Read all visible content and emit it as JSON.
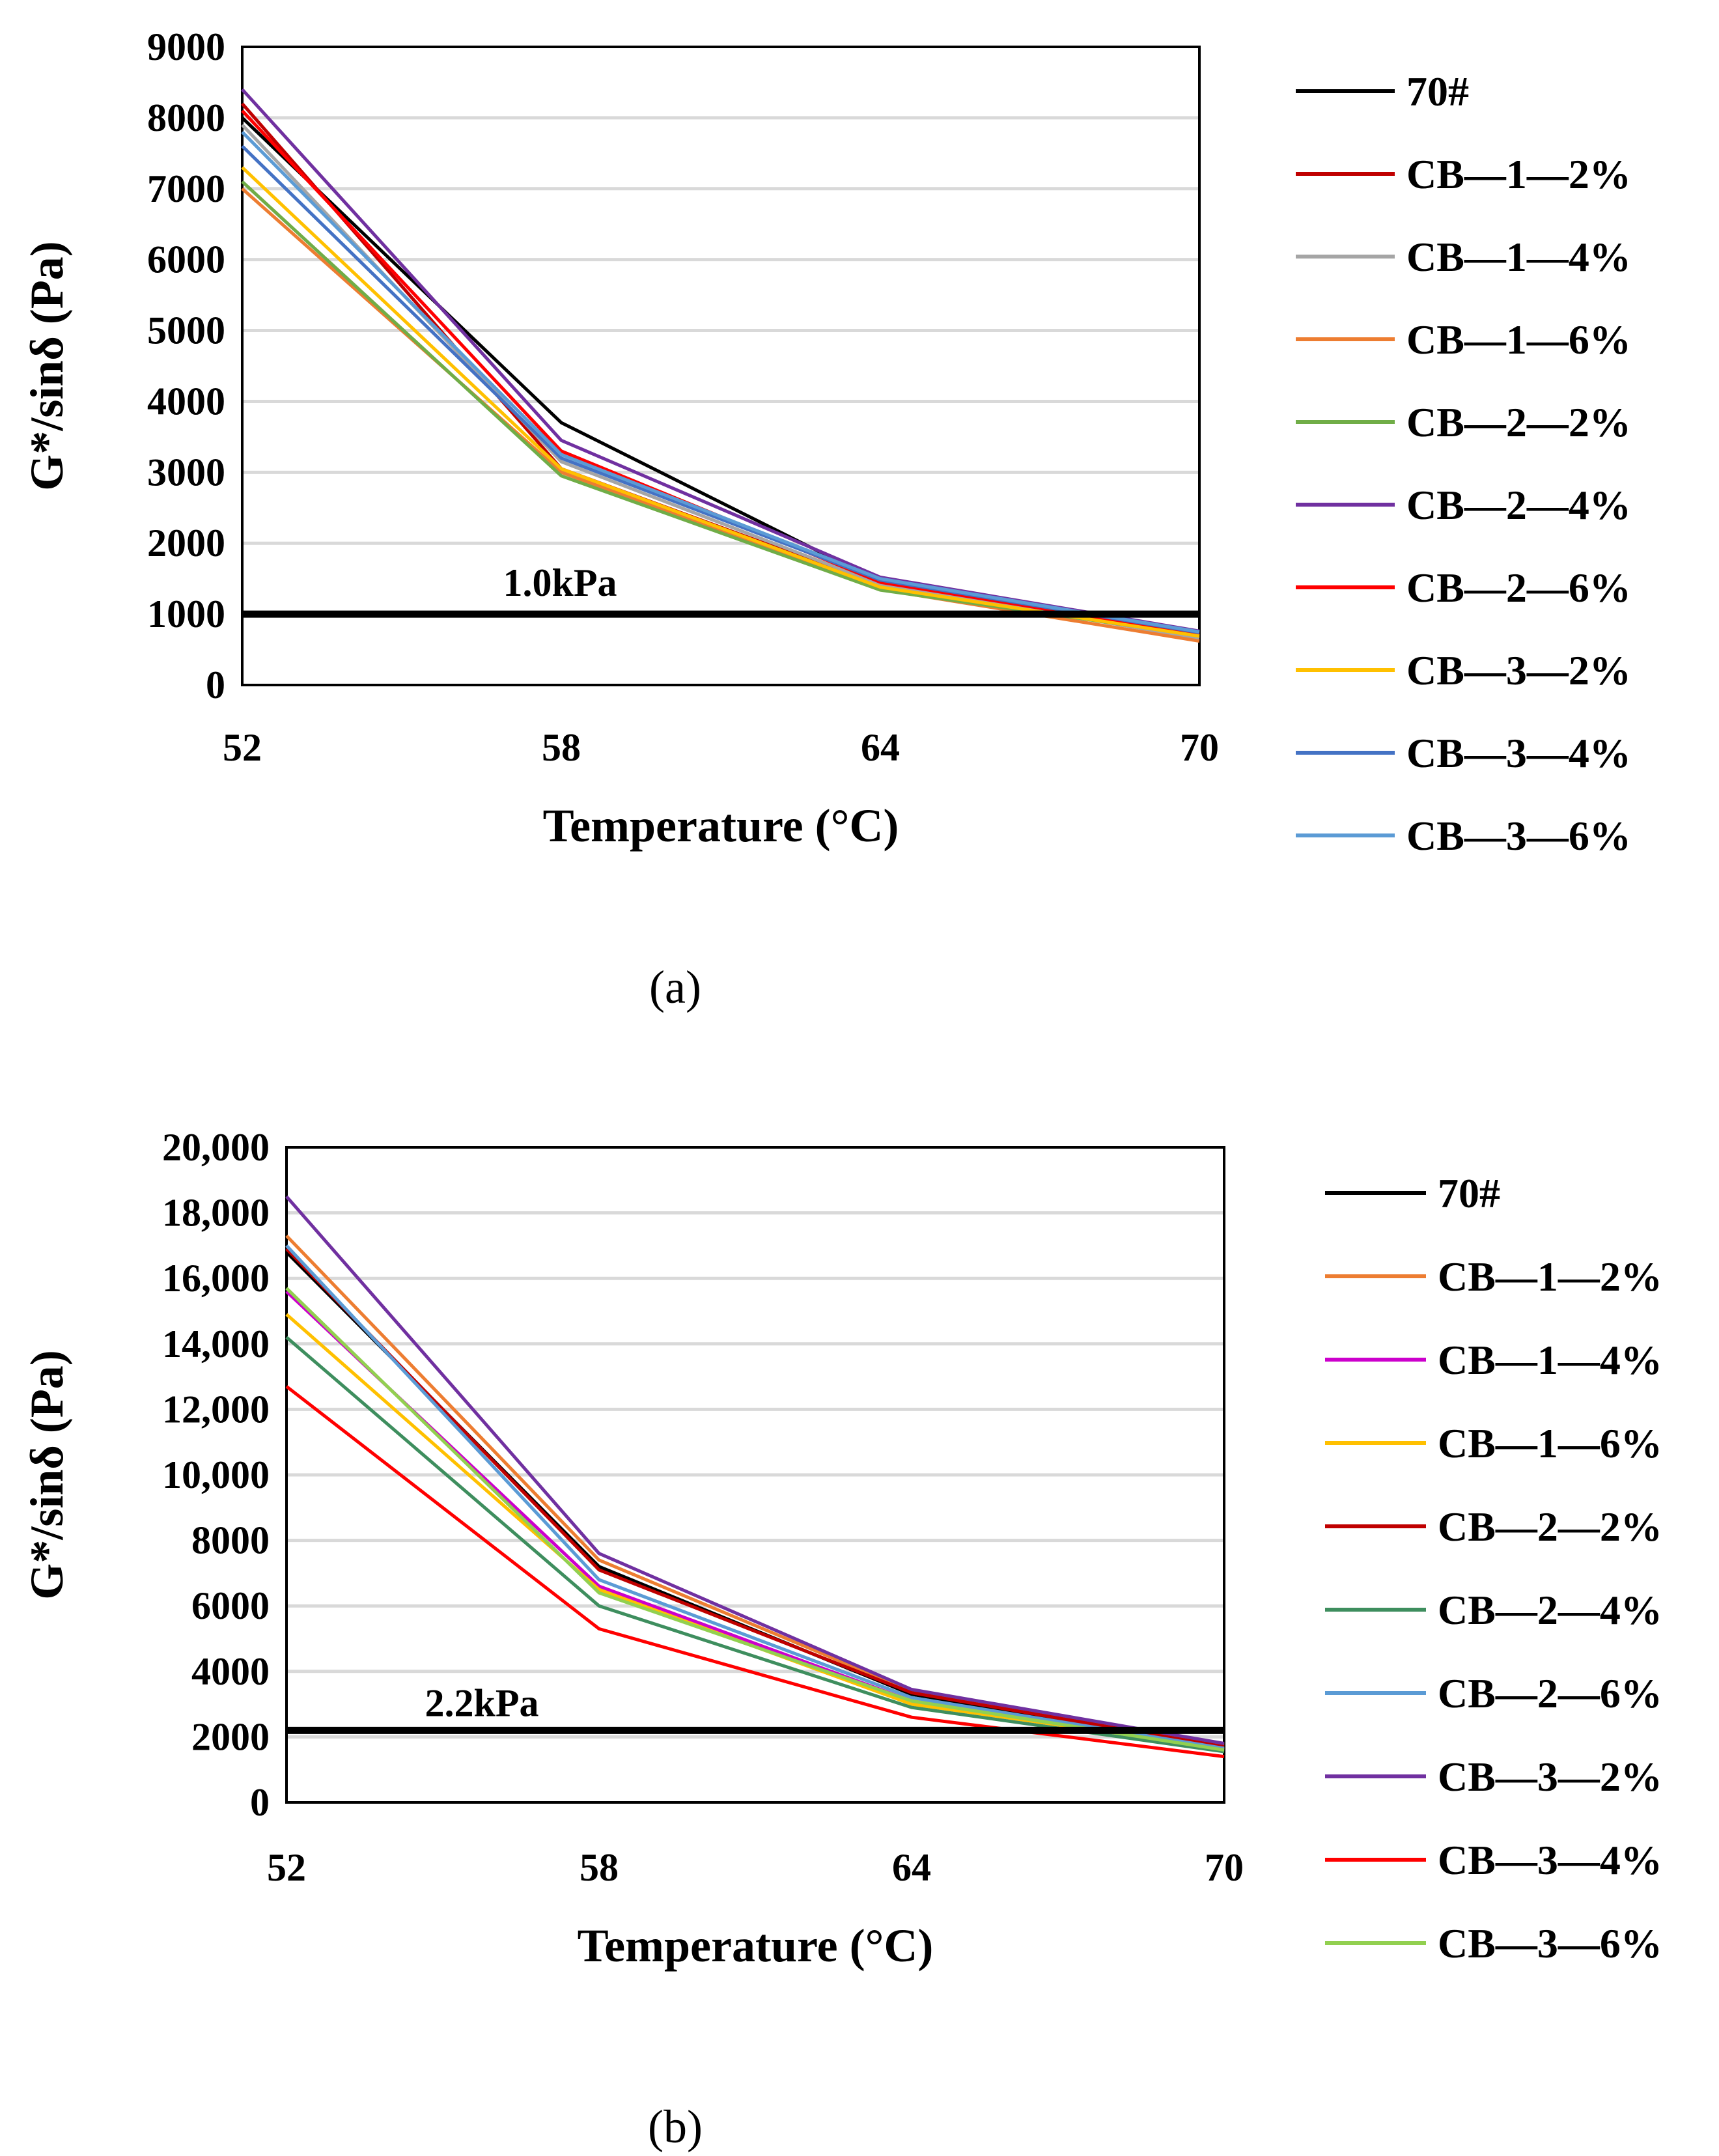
{
  "chart_data": [
    {
      "type": "line",
      "caption": "(a)",
      "xlabel": "Temperature (°C)",
      "ylabel": "G*/sinδ (Pa)",
      "categories": [
        "52",
        "58",
        "64",
        "70"
      ],
      "ylim": [
        0,
        9000
      ],
      "yticks": [
        "0",
        "1000",
        "2000",
        "3000",
        "4000",
        "5000",
        "6000",
        "7000",
        "8000",
        "9000"
      ],
      "reference": {
        "value": 1000,
        "label": "1.0kPa"
      },
      "legend_position": "right",
      "series": [
        {
          "name": "70#",
          "color": "#000000",
          "values": [
            8000,
            3700,
            1450,
            700
          ]
        },
        {
          "name": "CB—1—2%",
          "color": "#C00000",
          "values": [
            8200,
            3050,
            1400,
            680
          ]
        },
        {
          "name": "CB—1—4%",
          "color": "#A5A5A5",
          "values": [
            7900,
            3150,
            1420,
            660
          ]
        },
        {
          "name": "CB—1—6%",
          "color": "#ED7D31",
          "values": [
            7000,
            3000,
            1350,
            620
          ]
        },
        {
          "name": "CB—2—2%",
          "color": "#70AD47",
          "values": [
            7100,
            2950,
            1340,
            700
          ]
        },
        {
          "name": "CB—2—4%",
          "color": "#7030A0",
          "values": [
            8400,
            3450,
            1520,
            760
          ]
        },
        {
          "name": "CB—2—6%",
          "color": "#FF0000",
          "values": [
            8100,
            3300,
            1450,
            720
          ]
        },
        {
          "name": "CB—3—2%",
          "color": "#FFC000",
          "values": [
            7300,
            3050,
            1380,
            690
          ]
        },
        {
          "name": "CB—3—4%",
          "color": "#4472C4",
          "values": [
            7600,
            3200,
            1480,
            740
          ]
        },
        {
          "name": "CB—3—6%",
          "color": "#5B9BD5",
          "values": [
            7800,
            3250,
            1500,
            750
          ]
        }
      ]
    },
    {
      "type": "line",
      "caption": "(b)",
      "xlabel": "Temperature (°C)",
      "ylabel": "G*/sinδ (Pa)",
      "categories": [
        "52",
        "58",
        "64",
        "70"
      ],
      "ylim": [
        0,
        20000
      ],
      "yticks": [
        "0",
        "2000",
        "4000",
        "6000",
        "8000",
        "10,000",
        "12,000",
        "14,000",
        "16,000",
        "18,000",
        "20,000"
      ],
      "reference": {
        "value": 2200,
        "label": "2.2kPa"
      },
      "legend_position": "right",
      "series": [
        {
          "name": "70#",
          "color": "#000000",
          "values": [
            16800,
            7200,
            3300,
            1700
          ]
        },
        {
          "name": "CB—1—2%",
          "color": "#ED7D31",
          "values": [
            17300,
            7400,
            3400,
            1750
          ]
        },
        {
          "name": "CB—1—4%",
          "color": "#CC00CC",
          "values": [
            15600,
            6600,
            3100,
            1600
          ]
        },
        {
          "name": "CB—1—6%",
          "color": "#FFC000",
          "values": [
            14900,
            6500,
            3000,
            1650
          ]
        },
        {
          "name": "CB—2—2%",
          "color": "#C00000",
          "values": [
            16900,
            7100,
            3350,
            1700
          ]
        },
        {
          "name": "CB—2—4%",
          "color": "#3E8E5E",
          "values": [
            14200,
            6000,
            2900,
            1550
          ]
        },
        {
          "name": "CB—2—6%",
          "color": "#5B9BD5",
          "values": [
            17000,
            6800,
            3200,
            1650
          ]
        },
        {
          "name": "CB—3—2%",
          "color": "#7030A0",
          "values": [
            18500,
            7600,
            3450,
            1800
          ]
        },
        {
          "name": "CB—3—4%",
          "color": "#FF0000",
          "values": [
            12700,
            5300,
            2600,
            1400
          ]
        },
        {
          "name": "CB—3—6%",
          "color": "#92D050",
          "values": [
            15700,
            6400,
            3100,
            1600
          ]
        }
      ]
    }
  ]
}
